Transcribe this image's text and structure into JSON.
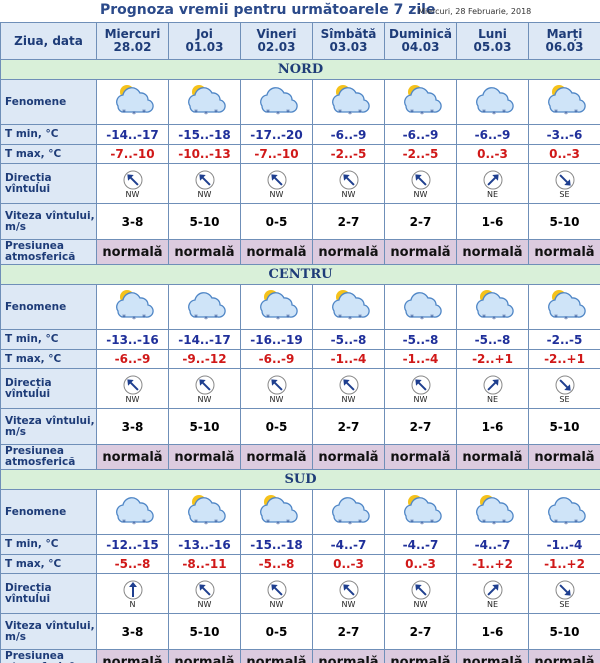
{
  "title": "Prognoza vremii pentru următoarele 7 zile",
  "date": "Miercuri, 28 Februarie, 2018",
  "header": {
    "label": "Ziua, data",
    "days": [
      {
        "name": "Miercuri",
        "date": "28.02"
      },
      {
        "name": "Joi",
        "date": "01.03"
      },
      {
        "name": "Vineri",
        "date": "02.03"
      },
      {
        "name": "Sîmbătă",
        "date": "03.03"
      },
      {
        "name": "Duminică",
        "date": "04.03"
      },
      {
        "name": "Luni",
        "date": "05.03"
      },
      {
        "name": "Marți",
        "date": "06.03"
      }
    ]
  },
  "row_labels": {
    "phenomena": "Fenomene",
    "tmin": "T min, °C",
    "tmax": "T max, °C",
    "wind_dir": "Direcția vîntului",
    "wind_speed": "Viteza vîntului, m/s",
    "pressure": "Presiunea atmosferică"
  },
  "regions": [
    {
      "name": "NORD",
      "tmin": [
        "-14..-17",
        "-15..-18",
        "-17..-20",
        "-6..-9",
        "-6..-9",
        "-6..-9",
        "-3..-6"
      ],
      "tmax": [
        "-7..-10",
        "-10..-13",
        "-7..-10",
        "-2..-5",
        "-2..-5",
        "0..-3",
        "0..-3"
      ],
      "wind_dir": [
        "NW",
        "NW",
        "NW",
        "NW",
        "NW",
        "NE",
        "SE"
      ],
      "wind_speed": [
        "3-8",
        "5-10",
        "0-5",
        "2-7",
        "2-7",
        "1-6",
        "5-10"
      ],
      "pressure": [
        "normală",
        "normală",
        "normală",
        "normală",
        "normală",
        "normală",
        "normală"
      ]
    },
    {
      "name": "CENTRU",
      "tmin": [
        "-13..-16",
        "-14..-17",
        "-16..-19",
        "-5..-8",
        "-5..-8",
        "-5..-8",
        "-2..-5"
      ],
      "tmax": [
        "-6..-9",
        "-9..-12",
        "-6..-9",
        "-1..-4",
        "-1..-4",
        "-2..+1",
        "-2..+1"
      ],
      "wind_dir": [
        "NW",
        "NW",
        "NW",
        "NW",
        "NW",
        "NE",
        "SE"
      ],
      "wind_speed": [
        "3-8",
        "5-10",
        "0-5",
        "2-7",
        "2-7",
        "1-6",
        "5-10"
      ],
      "pressure": [
        "normală",
        "normală",
        "normală",
        "normală",
        "normală",
        "normală",
        "normală"
      ]
    },
    {
      "name": "SUD",
      "tmin": [
        "-12..-15",
        "-13..-16",
        "-15..-18",
        "-4..-7",
        "-4..-7",
        "-4..-7",
        "-1..-4"
      ],
      "tmax": [
        "-5..-8",
        "-8..-11",
        "-5..-8",
        "0..-3",
        "0..-3",
        "-1..+2",
        "-1..+2"
      ],
      "wind_dir": [
        "N",
        "NW",
        "NW",
        "NW",
        "NW",
        "NE",
        "SE"
      ],
      "wind_speed": [
        "3-8",
        "5-10",
        "0-5",
        "2-7",
        "2-7",
        "1-6",
        "5-10"
      ],
      "pressure": [
        "normală",
        "normală",
        "normală",
        "normală",
        "normală",
        "normală",
        "normală"
      ]
    }
  ]
}
